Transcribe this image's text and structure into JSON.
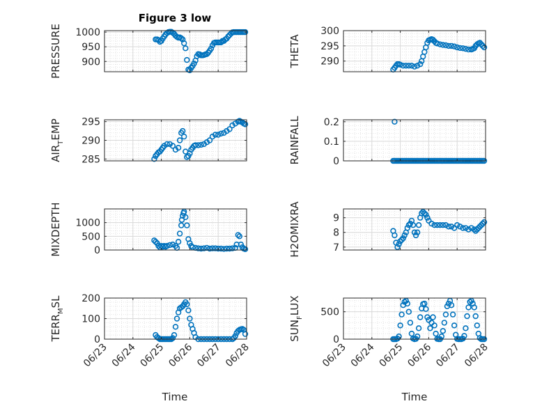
{
  "figure_title": "Figure 3 low",
  "colors": {
    "marker": "#0072BD",
    "axis": "#262626",
    "grid": "#d9d9d9"
  },
  "x_tick_labels": [
    "06/23",
    "06/24",
    "06/25",
    "06/26",
    "06/27",
    "06/28"
  ],
  "x_label": "Time",
  "chart_data": [
    {
      "type": "scatter",
      "id": "pressure",
      "ylabel": {
        "main": "PRESSURE",
        "sub": ""
      },
      "xlim": [
        "06/23",
        "06/28"
      ],
      "ylim": [
        865,
        1005
      ],
      "yticks": [
        900,
        950,
        1000
      ],
      "x": [
        1.8,
        1.85,
        1.9,
        1.95,
        2.0,
        2.05,
        2.1,
        2.15,
        2.2,
        2.25,
        2.3,
        2.35,
        2.4,
        2.45,
        2.5,
        2.55,
        2.6,
        2.65,
        2.7,
        2.75,
        2.8,
        2.85,
        2.9,
        2.95,
        3.0,
        3.05,
        3.1,
        3.15,
        3.2,
        3.25,
        3.3,
        3.35,
        3.4,
        3.45,
        3.5,
        3.55,
        3.6,
        3.65,
        3.7,
        3.75,
        3.8,
        3.85,
        3.9,
        3.95,
        4.0,
        4.05,
        4.1,
        4.15,
        4.2,
        4.25,
        4.3,
        4.35,
        4.4,
        4.45,
        4.5,
        4.55,
        4.6,
        4.65,
        4.7,
        4.75,
        4.8,
        4.85,
        4.9,
        4.95
      ],
      "y": [
        975,
        975,
        973,
        967,
        970,
        978,
        985,
        992,
        997,
        1000,
        1001,
        1001,
        998,
        994,
        988,
        984,
        981,
        982,
        979,
        975,
        962,
        945,
        905,
        872,
        870,
        878,
        885,
        893,
        903,
        918,
        925,
        924,
        921,
        921,
        922,
        924,
        925,
        930,
        937,
        944,
        955,
        963,
        965,
        965,
        965,
        965,
        965,
        970,
        970,
        975,
        978,
        985,
        990,
        995,
        999,
        1000,
        1000,
        1000,
        1000,
        1000,
        1000,
        1000,
        1000,
        1000
      ]
    },
    {
      "type": "scatter",
      "id": "theta",
      "ylabel": {
        "main": "THETA",
        "sub": ""
      },
      "xlim": [
        "06/23",
        "06/28"
      ],
      "ylim": [
        286.5,
        300
      ],
      "yticks": [
        290,
        295,
        300
      ],
      "x": [
        1.75,
        1.8,
        1.85,
        1.9,
        1.95,
        2.0,
        2.1,
        2.2,
        2.3,
        2.4,
        2.5,
        2.6,
        2.7,
        2.75,
        2.8,
        2.85,
        2.9,
        2.95,
        3.0,
        3.05,
        3.1,
        3.15,
        3.2,
        3.25,
        3.3,
        3.4,
        3.5,
        3.6,
        3.7,
        3.8,
        3.9,
        4.0,
        4.1,
        4.2,
        4.3,
        4.4,
        4.5,
        4.55,
        4.6,
        4.65,
        4.7,
        4.75,
        4.8,
        4.85,
        4.9,
        4.95
      ],
      "y": [
        287.2,
        287.8,
        288.5,
        289.0,
        289.0,
        288.8,
        288.5,
        288.5,
        288.5,
        288.5,
        288.2,
        288.5,
        289.0,
        290.0,
        291.5,
        293.0,
        294.5,
        296.0,
        296.8,
        297.0,
        297.2,
        297.0,
        296.5,
        296.0,
        295.8,
        295.5,
        295.3,
        295.2,
        295.0,
        295.0,
        294.8,
        294.5,
        294.3,
        294.2,
        294.0,
        293.8,
        293.8,
        294.0,
        294.2,
        295.0,
        295.5,
        295.8,
        296.0,
        295.5,
        295.0,
        294.5
      ]
    },
    {
      "type": "scatter",
      "id": "air_temp",
      "ylabel": {
        "main": "AIR",
        "sub": "T",
        "after": "EMP"
      },
      "xlim": [
        "06/23",
        "06/28"
      ],
      "ylim": [
        284.5,
        295.5
      ],
      "yticks": [
        285,
        290,
        295
      ],
      "x": [
        1.75,
        1.8,
        1.85,
        1.9,
        1.95,
        2.0,
        2.05,
        2.1,
        2.2,
        2.3,
        2.4,
        2.5,
        2.6,
        2.65,
        2.7,
        2.75,
        2.8,
        2.85,
        2.9,
        2.95,
        3.0,
        3.05,
        3.1,
        3.15,
        3.2,
        3.3,
        3.4,
        3.5,
        3.6,
        3.7,
        3.8,
        3.9,
        4.0,
        4.1,
        4.2,
        4.3,
        4.4,
        4.5,
        4.6,
        4.7,
        4.75,
        4.8,
        4.85,
        4.9,
        4.95
      ],
      "y": [
        285.0,
        285.8,
        286.3,
        286.8,
        287.0,
        287.5,
        288.0,
        288.5,
        289.0,
        289.0,
        288.5,
        287.5,
        288.0,
        290.0,
        292.0,
        292.5,
        291.0,
        287.0,
        285.5,
        285.8,
        286.5,
        287.5,
        288.0,
        288.5,
        288.7,
        288.7,
        288.8,
        289.0,
        289.5,
        290.0,
        291.0,
        291.5,
        291.5,
        291.8,
        292.0,
        292.5,
        293.0,
        294.0,
        294.5,
        295.0,
        295.2,
        295.0,
        294.8,
        294.5,
        294.3
      ]
    },
    {
      "type": "scatter",
      "id": "rainfall",
      "ylabel": {
        "main": "RAINFALL",
        "sub": ""
      },
      "xlim": [
        "06/23",
        "06/28"
      ],
      "ylim": [
        0,
        0.21
      ],
      "yticks": [
        0,
        0.1,
        0.2
      ],
      "x": [
        1.75,
        1.8,
        1.85,
        1.9,
        1.95,
        2.0,
        2.05,
        2.1,
        2.15,
        2.2,
        2.25,
        2.3,
        2.35,
        2.4,
        2.45,
        2.5,
        2.55,
        2.6,
        2.65,
        2.7,
        2.75,
        2.8,
        2.85,
        2.9,
        2.95,
        3.0,
        3.05,
        3.1,
        3.15,
        3.2,
        3.25,
        3.3,
        3.35,
        3.4,
        3.45,
        3.5,
        3.55,
        3.6,
        3.65,
        3.7,
        3.75,
        3.8,
        3.85,
        3.9,
        3.95,
        4.0,
        4.05,
        4.1,
        4.15,
        4.2,
        4.25,
        4.3,
        4.35,
        4.4,
        4.45,
        4.5,
        4.55,
        4.6,
        4.65,
        4.7,
        4.75,
        4.8,
        4.85,
        4.9,
        4.95,
        1.8
      ],
      "y": [
        0,
        0,
        0,
        0,
        0,
        0,
        0,
        0,
        0,
        0,
        0,
        0,
        0,
        0,
        0,
        0,
        0,
        0,
        0,
        0,
        0,
        0,
        0,
        0,
        0,
        0,
        0,
        0,
        0,
        0,
        0,
        0,
        0,
        0,
        0,
        0,
        0,
        0,
        0,
        0,
        0,
        0,
        0,
        0,
        0,
        0,
        0,
        0,
        0,
        0,
        0,
        0,
        0,
        0,
        0,
        0,
        0,
        0,
        0,
        0,
        0,
        0,
        0,
        0,
        0,
        0.2
      ]
    },
    {
      "type": "scatter",
      "id": "mixdepth",
      "ylabel": {
        "main": "MIXDEPTH",
        "sub": ""
      },
      "xlim": [
        "06/23",
        "06/28"
      ],
      "ylim": [
        0,
        1500
      ],
      "yticks": [
        0,
        500,
        1000
      ],
      "x": [
        1.75,
        1.8,
        1.85,
        1.9,
        1.95,
        2.0,
        2.05,
        2.1,
        2.15,
        2.2,
        2.3,
        2.4,
        2.5,
        2.55,
        2.6,
        2.65,
        2.7,
        2.72,
        2.75,
        2.78,
        2.8,
        2.85,
        2.9,
        2.95,
        3.0,
        3.05,
        3.1,
        3.2,
        3.3,
        3.4,
        3.5,
        3.6,
        3.7,
        3.8,
        3.9,
        4.0,
        4.1,
        4.2,
        4.3,
        4.4,
        4.5,
        4.6,
        4.65,
        4.7,
        4.75,
        4.8,
        4.85,
        4.9,
        4.95
      ],
      "y": [
        350,
        300,
        250,
        150,
        100,
        150,
        120,
        150,
        120,
        150,
        180,
        200,
        150,
        80,
        300,
        600,
        900,
        1100,
        1250,
        1350,
        1400,
        1200,
        900,
        400,
        250,
        150,
        100,
        80,
        60,
        50,
        60,
        80,
        50,
        60,
        60,
        50,
        50,
        40,
        50,
        50,
        60,
        80,
        200,
        550,
        500,
        200,
        100,
        50,
        30
      ]
    },
    {
      "type": "scatter",
      "id": "h2omixra",
      "ylabel": {
        "main": "H2OMIXRA",
        "sub": ""
      },
      "xlim": [
        "06/23",
        "06/28"
      ],
      "ylim": [
        6.8,
        9.6
      ],
      "yticks": [
        7,
        8,
        9
      ],
      "x": [
        1.75,
        1.8,
        1.85,
        1.9,
        1.95,
        2.0,
        2.05,
        2.1,
        2.15,
        2.2,
        2.25,
        2.3,
        2.35,
        2.4,
        2.45,
        2.5,
        2.55,
        2.6,
        2.65,
        2.7,
        2.75,
        2.8,
        2.85,
        2.9,
        2.95,
        3.0,
        3.1,
        3.2,
        3.3,
        3.4,
        3.5,
        3.6,
        3.7,
        3.8,
        3.9,
        4.0,
        4.1,
        4.2,
        4.3,
        4.4,
        4.5,
        4.6,
        4.65,
        4.7,
        4.75,
        4.8,
        4.85,
        4.9,
        4.95
      ],
      "y": [
        8.1,
        7.8,
        7.3,
        7.0,
        7.2,
        7.4,
        7.5,
        7.6,
        7.8,
        8.0,
        8.3,
        8.5,
        8.6,
        8.8,
        8.5,
        8.0,
        7.8,
        8.0,
        8.5,
        9.0,
        9.3,
        9.4,
        9.3,
        9.2,
        9.0,
        8.8,
        8.6,
        8.5,
        8.5,
        8.5,
        8.5,
        8.5,
        8.4,
        8.4,
        8.3,
        8.5,
        8.4,
        8.3,
        8.3,
        8.2,
        8.3,
        8.2,
        8.1,
        8.2,
        8.3,
        8.4,
        8.5,
        8.6,
        8.7
      ]
    },
    {
      "type": "scatter",
      "id": "terr_msl",
      "ylabel": {
        "main": "TERR",
        "sub": "M",
        "after": "SL"
      },
      "xlim": [
        "06/23",
        "06/28"
      ],
      "ylim": [
        0,
        200
      ],
      "yticks": [
        0,
        100,
        200
      ],
      "x": [
        1.8,
        1.85,
        1.9,
        1.95,
        2.0,
        2.05,
        2.1,
        2.15,
        2.2,
        2.25,
        2.3,
        2.35,
        2.4,
        2.45,
        2.5,
        2.55,
        2.6,
        2.65,
        2.7,
        2.75,
        2.8,
        2.85,
        2.9,
        2.95,
        3.0,
        3.05,
        3.1,
        3.15,
        3.2,
        3.3,
        3.4,
        3.5,
        3.6,
        3.7,
        3.8,
        3.9,
        4.0,
        4.1,
        4.2,
        4.3,
        4.4,
        4.5,
        4.55,
        4.6,
        4.65,
        4.7,
        4.75,
        4.8,
        4.85,
        4.9,
        4.95
      ],
      "y": [
        20,
        10,
        5,
        0,
        0,
        0,
        0,
        0,
        0,
        0,
        0,
        0,
        5,
        20,
        60,
        100,
        130,
        150,
        155,
        160,
        170,
        180,
        170,
        140,
        100,
        70,
        50,
        30,
        10,
        0,
        0,
        0,
        0,
        0,
        0,
        0,
        0,
        0,
        0,
        0,
        0,
        0,
        5,
        15,
        30,
        40,
        45,
        48,
        50,
        45,
        25
      ]
    },
    {
      "type": "scatter",
      "id": "sun_flux",
      "ylabel": {
        "main": "SUN",
        "sub": "F",
        "after": "LUX"
      },
      "xlim": [
        "06/23",
        "06/28"
      ],
      "ylim": [
        0,
        750
      ],
      "yticks": [
        0,
        500
      ],
      "x": [
        1.75,
        1.8,
        1.85,
        1.9,
        1.95,
        2.0,
        2.05,
        2.1,
        2.15,
        2.2,
        2.25,
        2.3,
        2.35,
        2.4,
        2.45,
        2.5,
        2.55,
        2.6,
        2.65,
        2.7,
        2.75,
        2.8,
        2.85,
        2.9,
        2.95,
        3.0,
        3.05,
        3.1,
        3.15,
        3.2,
        3.25,
        3.3,
        3.35,
        3.4,
        3.45,
        3.5,
        3.55,
        3.6,
        3.65,
        3.7,
        3.75,
        3.8,
        3.85,
        3.9,
        3.95,
        4.0,
        4.05,
        4.1,
        4.15,
        4.2,
        4.25,
        4.3,
        4.35,
        4.4,
        4.45,
        4.5,
        4.55,
        4.6,
        4.65,
        4.7,
        4.75,
        4.8,
        4.85,
        4.9,
        4.95
      ],
      "y": [
        0,
        0,
        0,
        10,
        50,
        250,
        450,
        620,
        680,
        700,
        650,
        500,
        300,
        100,
        10,
        0,
        5,
        50,
        200,
        400,
        560,
        640,
        650,
        550,
        400,
        350,
        200,
        300,
        400,
        250,
        100,
        5,
        0,
        0,
        50,
        150,
        300,
        450,
        600,
        650,
        700,
        620,
        450,
        250,
        80,
        5,
        0,
        0,
        0,
        10,
        60,
        200,
        420,
        580,
        680,
        700,
        650,
        580,
        420,
        250,
        100,
        20,
        0,
        0,
        0
      ]
    }
  ]
}
